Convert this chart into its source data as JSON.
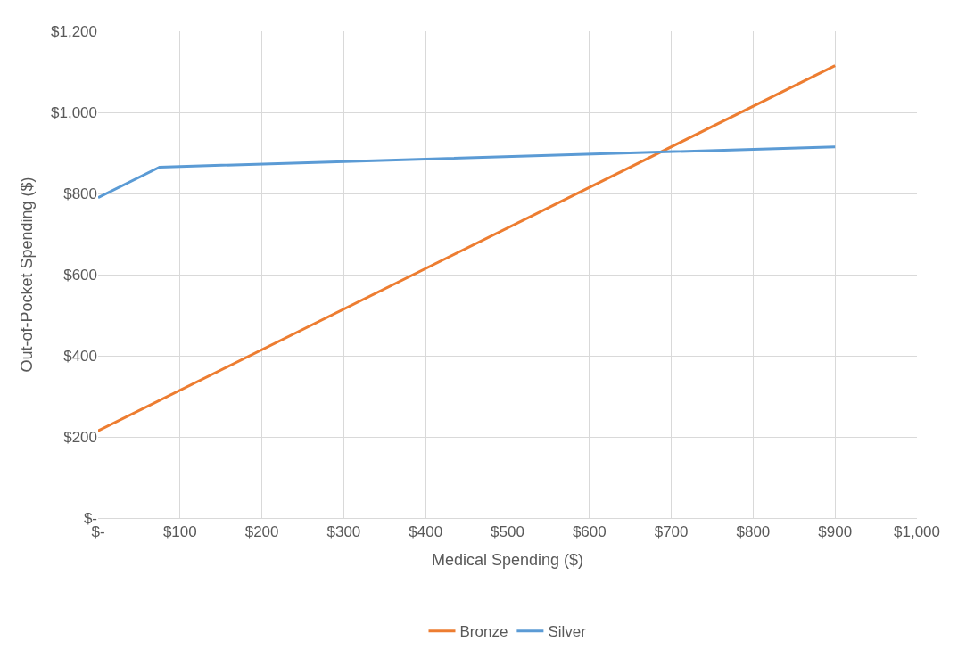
{
  "chart_data": {
    "type": "line",
    "xlabel": "Medical Spending ($)",
    "ylabel": "Out-of-Pocket Spending ($)",
    "series": [
      {
        "name": "Bronze",
        "color": "#ed7d31",
        "x": [
          0,
          900
        ],
        "values": [
          215,
          1115
        ]
      },
      {
        "name": "Silver",
        "color": "#5b9bd5",
        "x": [
          0,
          75,
          900
        ],
        "values": [
          790,
          865,
          915
        ]
      }
    ],
    "xlim": [
      0,
      1000
    ],
    "xticks": [
      {
        "value": 0,
        "label": "$-"
      },
      {
        "value": 100,
        "label": "$100"
      },
      {
        "value": 200,
        "label": "$200"
      },
      {
        "value": 300,
        "label": "$300"
      },
      {
        "value": 400,
        "label": "$400"
      },
      {
        "value": 500,
        "label": "$500"
      },
      {
        "value": 600,
        "label": "$600"
      },
      {
        "value": 700,
        "label": "$700"
      },
      {
        "value": 800,
        "label": "$800"
      },
      {
        "value": 900,
        "label": "$900"
      },
      {
        "value": 1000,
        "label": "$1,000"
      }
    ],
    "ylim": [
      0,
      1200
    ],
    "yticks": [
      {
        "value": 0,
        "label": "$-"
      },
      {
        "value": 200,
        "label": "$200"
      },
      {
        "value": 400,
        "label": "$400"
      },
      {
        "value": 600,
        "label": "$600"
      },
      {
        "value": 800,
        "label": "$800"
      },
      {
        "value": 1000,
        "label": "$1,000"
      },
      {
        "value": 1200,
        "label": "$1,200"
      }
    ],
    "grid": true,
    "legend": "bottom",
    "marker": "none",
    "line_style": "solid"
  }
}
